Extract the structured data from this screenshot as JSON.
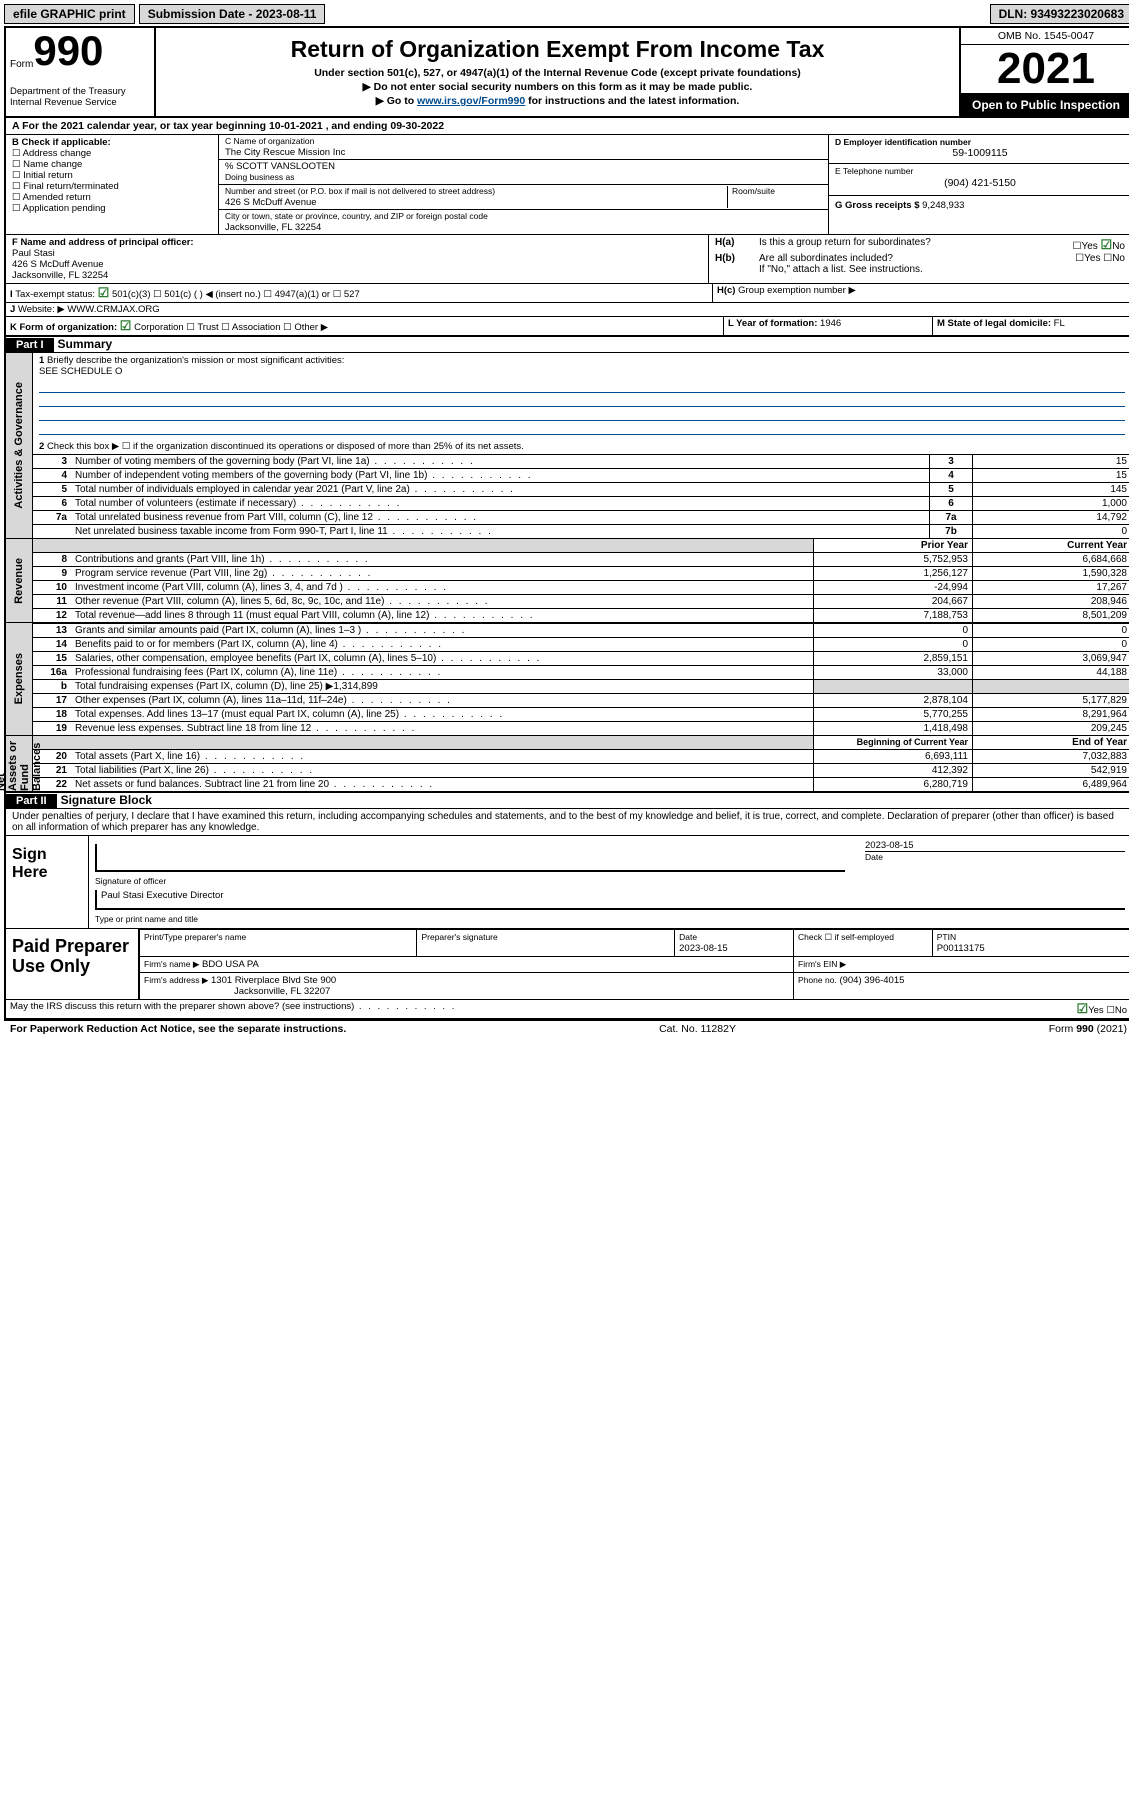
{
  "topbar": {
    "efile": "efile GRAPHIC print",
    "sub_label": "Submission Date - 2023-08-11",
    "dln_label": "DLN: 93493223020683"
  },
  "header": {
    "form_word": "Form",
    "form_no": "990",
    "title": "Return of Organization Exempt From Income Tax",
    "sub1": "Under section 501(c), 527, or 4947(a)(1) of the Internal Revenue Code (except private foundations)",
    "sub2": "▶ Do not enter social security numbers on this form as it may be made public.",
    "sub3_pre": "▶ Go to ",
    "sub3_link": "www.irs.gov/Form990",
    "sub3_post": " for instructions and the latest information.",
    "dept": "Department of the Treasury\nInternal Revenue Service",
    "omb": "OMB No. 1545-0047",
    "year": "2021",
    "inspect": "Open to Public Inspection"
  },
  "A_period": "For the 2021 calendar year, or tax year beginning 10-01-2021   , and ending 09-30-2022",
  "B": {
    "label": "B Check if applicable:",
    "opts": [
      "Address change",
      "Name change",
      "Initial return",
      "Final return/terminated",
      "Amended return",
      "Application pending"
    ]
  },
  "C": {
    "name_label": "C Name of organization",
    "name": "The City Rescue Mission Inc",
    "care_of": "% SCOTT VANSLOOTEN",
    "dba_label": "Doing business as",
    "street_label": "Number and street (or P.O. box if mail is not delivered to street address)",
    "room_label": "Room/suite",
    "street": "426 S McDuff Avenue",
    "city_label": "City or town, state or province, country, and ZIP or foreign postal code",
    "city": "Jacksonville, FL  32254"
  },
  "D": {
    "label": "D Employer identification number",
    "value": "59-1009115"
  },
  "E": {
    "label": "E Telephone number",
    "value": "(904) 421-5150"
  },
  "G": {
    "label": "G Gross receipts $",
    "value": "9,248,933"
  },
  "F": {
    "label": "F Name and address of principal officer:",
    "name": "Paul Stasi",
    "street": "426 S McDuff Avenue",
    "city": "Jacksonville, FL  32254"
  },
  "H": {
    "a": "Is this a group return for subordinates?",
    "b": "Are all subordinates included?",
    "b_note": "If \"No,\" attach a list. See instructions.",
    "c": "Group exemption number ▶",
    "yes": "Yes",
    "no": "No"
  },
  "I": {
    "label": "Tax-exempt status:",
    "opts": [
      "501(c)(3)",
      "501(c) (  ) ◀ (insert no.)",
      "4947(a)(1) or",
      "527"
    ]
  },
  "J": {
    "label": "Website: ▶",
    "value": "WWW.CRMJAX.ORG"
  },
  "K": {
    "label": "K Form of organization:",
    "opts": [
      "Corporation",
      "Trust",
      "Association",
      "Other ▶"
    ]
  },
  "L": {
    "label": "L Year of formation:",
    "value": "1946"
  },
  "M": {
    "label": "M State of legal domicile:",
    "value": "FL"
  },
  "partI": {
    "hdr": "Part I",
    "title": "Summary",
    "l1": "Briefly describe the organization's mission or most significant activities:",
    "l1_val": "SEE SCHEDULE O",
    "l2": "Check this box ▶ ☐  if the organization discontinued its operations or disposed of more than 25% of its net assets.",
    "rows_top": [
      {
        "n": "3",
        "t": "Number of voting members of the governing body (Part VI, line 1a)",
        "box": "3",
        "v": "15"
      },
      {
        "n": "4",
        "t": "Number of independent voting members of the governing body (Part VI, line 1b)",
        "box": "4",
        "v": "15"
      },
      {
        "n": "5",
        "t": "Total number of individuals employed in calendar year 2021 (Part V, line 2a)",
        "box": "5",
        "v": "145"
      },
      {
        "n": "6",
        "t": "Total number of volunteers (estimate if necessary)",
        "box": "6",
        "v": "1,000"
      },
      {
        "n": "7a",
        "t": "Total unrelated business revenue from Part VIII, column (C), line 12",
        "box": "7a",
        "v": "14,792"
      },
      {
        "n": "",
        "t": "Net unrelated business taxable income from Form 990-T, Part I, line 11",
        "box": "7b",
        "v": "0"
      }
    ],
    "col_hdr_prior": "Prior Year",
    "col_hdr_curr": "Current Year",
    "revenue": [
      {
        "n": "8",
        "t": "Contributions and grants (Part VIII, line 1h)",
        "p": "5,752,953",
        "c": "6,684,668"
      },
      {
        "n": "9",
        "t": "Program service revenue (Part VIII, line 2g)",
        "p": "1,256,127",
        "c": "1,590,328"
      },
      {
        "n": "10",
        "t": "Investment income (Part VIII, column (A), lines 3, 4, and 7d )",
        "p": "-24,994",
        "c": "17,267"
      },
      {
        "n": "11",
        "t": "Other revenue (Part VIII, column (A), lines 5, 6d, 8c, 9c, 10c, and 11e)",
        "p": "204,667",
        "c": "208,946"
      },
      {
        "n": "12",
        "t": "Total revenue—add lines 8 through 11 (must equal Part VIII, column (A), line 12)",
        "p": "7,188,753",
        "c": "8,501,209"
      }
    ],
    "expenses": [
      {
        "n": "13",
        "t": "Grants and similar amounts paid (Part IX, column (A), lines 1–3 )",
        "p": "0",
        "c": "0"
      },
      {
        "n": "14",
        "t": "Benefits paid to or for members (Part IX, column (A), line 4)",
        "p": "0",
        "c": "0"
      },
      {
        "n": "15",
        "t": "Salaries, other compensation, employee benefits (Part IX, column (A), lines 5–10)",
        "p": "2,859,151",
        "c": "3,069,947"
      },
      {
        "n": "16a",
        "t": "Professional fundraising fees (Part IX, column (A), line 11e)",
        "p": "33,000",
        "c": "44,188"
      },
      {
        "n": "b",
        "t": "Total fundraising expenses (Part IX, column (D), line 25) ▶1,314,899",
        "shaded": true
      },
      {
        "n": "17",
        "t": "Other expenses (Part IX, column (A), lines 11a–11d, 11f–24e)",
        "p": "2,878,104",
        "c": "5,177,829"
      },
      {
        "n": "18",
        "t": "Total expenses. Add lines 13–17 (must equal Part IX, column (A), line 25)",
        "p": "5,770,255",
        "c": "8,291,964"
      },
      {
        "n": "19",
        "t": "Revenue less expenses. Subtract line 18 from line 12",
        "p": "1,418,498",
        "c": "209,245"
      }
    ],
    "col_hdr_beg": "Beginning of Current Year",
    "col_hdr_end": "End of Year",
    "netassets": [
      {
        "n": "20",
        "t": "Total assets (Part X, line 16)",
        "p": "6,693,111",
        "c": "7,032,883"
      },
      {
        "n": "21",
        "t": "Total liabilities (Part X, line 26)",
        "p": "412,392",
        "c": "542,919"
      },
      {
        "n": "22",
        "t": "Net assets or fund balances. Subtract line 21 from line 20",
        "p": "6,280,719",
        "c": "6,489,964"
      }
    ],
    "tabs": {
      "gov": "Activities & Governance",
      "rev": "Revenue",
      "exp": "Expenses",
      "net": "Net Assets or Fund Balances"
    }
  },
  "partII": {
    "hdr": "Part II",
    "title": "Signature Block",
    "decl": "Under penalties of perjury, I declare that I have examined this return, including accompanying schedules and statements, and to the best of my knowledge and belief, it is true, correct, and complete. Declaration of preparer (other than officer) is based on all information of which preparer has any knowledge."
  },
  "sign": {
    "here": "Sign Here",
    "officer_sig": "Signature of officer",
    "date": "Date",
    "date_val": "2023-08-15",
    "name_title": "Paul Stasi  Executive Director",
    "name_title_label": "Type or print name and title"
  },
  "preparer": {
    "label": "Paid Preparer Use Only",
    "cols": {
      "name": "Print/Type preparer's name",
      "sig": "Preparer's signature",
      "date": "Date",
      "date_val": "2023-08-15",
      "check": "Check ☐ if self-employed",
      "ptin": "PTIN",
      "ptin_val": "P00113175"
    },
    "firm_name_label": "Firm's name     ▶",
    "firm_name": "BDO USA PA",
    "firm_ein_label": "Firm's EIN ▶",
    "firm_addr_label": "Firm's address ▶",
    "firm_addr1": "1301 Riverplace Blvd Ste 900",
    "firm_addr2": "Jacksonville, FL  32207",
    "phone_label": "Phone no.",
    "phone": "(904) 396-4015"
  },
  "discuss": {
    "q": "May the IRS discuss this return with the preparer shown above? (see instructions)",
    "yes": "Yes",
    "no": "No"
  },
  "footer": {
    "left": "For Paperwork Reduction Act Notice, see the separate instructions.",
    "mid": "Cat. No. 11282Y",
    "right": "Form 990 (2021)"
  }
}
